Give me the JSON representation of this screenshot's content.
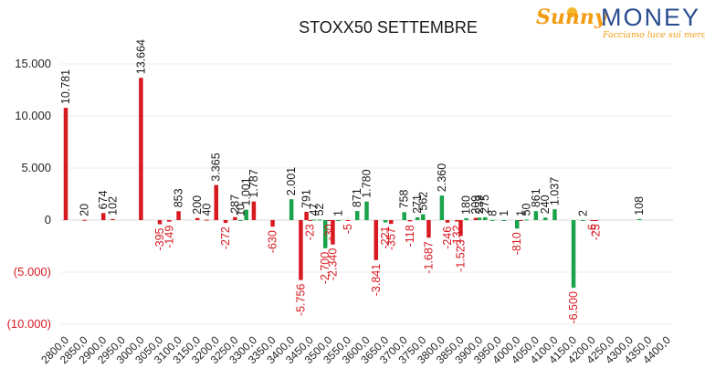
{
  "logo": {
    "brand_script": "Sunny",
    "brand_caps": "MONEY",
    "tagline": "Facciamo luce sui mercati"
  },
  "colors": {
    "call": "#1aa34a",
    "put": "#d71920",
    "negative_tick": "#d71920"
  },
  "chart_data": {
    "type": "bar",
    "title": "STOXX50 SETTEMBRE",
    "xlabel": "",
    "ylabel": "",
    "ylim": [
      -10000,
      15000
    ],
    "grid": true,
    "legend": "none",
    "y_ticks": [
      {
        "value": 15000,
        "label": "15.000"
      },
      {
        "value": 10000,
        "label": "10.000"
      },
      {
        "value": 5000,
        "label": "5.000"
      },
      {
        "value": 0,
        "label": "0"
      },
      {
        "value": -5000,
        "label": "(5.000)"
      },
      {
        "value": -10000,
        "label": "(10.000)"
      }
    ],
    "categories": [
      "2800,0",
      "2850,0",
      "2900,0",
      "2950,0",
      "3000,0",
      "3050,0",
      "3100,0",
      "3150,0",
      "3200,0",
      "3250,0",
      "3300,0",
      "3350,0",
      "3400,0",
      "3450,0",
      "3500,0",
      "3550,0",
      "3600,0",
      "3650,0",
      "3700,0",
      "3750,0",
      "3800,0",
      "3850,0",
      "3900,0",
      "3950,0",
      "4000,0",
      "4050,0",
      "4100,0",
      "4150,0",
      "4200,0",
      "4250,0",
      "4300,0",
      "4350,0",
      "4400,0"
    ],
    "bars": [
      {
        "x": 2800,
        "value": 10781,
        "label": "10.781",
        "color": "put"
      },
      {
        "x": 2850,
        "value": 20,
        "label": "20",
        "color": "put"
      },
      {
        "x": 2900,
        "value": 674,
        "label": "674",
        "color": "put"
      },
      {
        "x": 2925,
        "value": 102,
        "label": "102",
        "color": "put"
      },
      {
        "x": 3000,
        "value": 13664,
        "label": "13.664",
        "color": "put"
      },
      {
        "x": 3050,
        "value": -395,
        "label": "-395",
        "color": "put"
      },
      {
        "x": 3075,
        "value": -149,
        "label": "-149",
        "color": "put"
      },
      {
        "x": 3100,
        "value": 853,
        "label": "853",
        "color": "put"
      },
      {
        "x": 3150,
        "value": 200,
        "label": "200",
        "color": "put"
      },
      {
        "x": 3175,
        "value": 40,
        "label": "40",
        "color": "put"
      },
      {
        "x": 3200,
        "value": 3365,
        "label": "3.365",
        "color": "put"
      },
      {
        "x": 3225,
        "value": -272,
        "label": "-272",
        "color": "put"
      },
      {
        "x": 3250,
        "value": 287,
        "label": "287",
        "color": "put"
      },
      {
        "x": 3265,
        "value": 10,
        "label": "10",
        "color": "call"
      },
      {
        "x": 3280,
        "value": 1001,
        "label": "1.001",
        "color": "call"
      },
      {
        "x": 3300,
        "value": 1787,
        "label": "1.787",
        "color": "put"
      },
      {
        "x": 3350,
        "value": -630,
        "label": "-630",
        "color": "put"
      },
      {
        "x": 3400,
        "value": 2001,
        "label": "2.001",
        "color": "call"
      },
      {
        "x": 3425,
        "value": -5756,
        "label": "-5.756",
        "color": "put"
      },
      {
        "x": 3440,
        "value": 791,
        "label": "791",
        "color": "put"
      },
      {
        "x": 3450,
        "value": -23,
        "label": "-23",
        "color": "put"
      },
      {
        "x": 3460,
        "value": 47,
        "label": "47",
        "color": "call"
      },
      {
        "x": 3475,
        "value": 52,
        "label": "52",
        "color": "call"
      },
      {
        "x": 3490,
        "value": -2700,
        "label": "-2.700",
        "color": "call"
      },
      {
        "x": 3500,
        "value": -30,
        "label": "-30",
        "color": "put"
      },
      {
        "x": 3510,
        "value": -2340,
        "label": "-2.340",
        "color": "put"
      },
      {
        "x": 3525,
        "value": 1,
        "label": "1",
        "color": "call"
      },
      {
        "x": 3550,
        "value": -5,
        "label": "-5",
        "color": "put"
      },
      {
        "x": 3575,
        "value": 871,
        "label": "871",
        "color": "call"
      },
      {
        "x": 3600,
        "value": 1780,
        "label": "1.780",
        "color": "call"
      },
      {
        "x": 3625,
        "value": -3841,
        "label": "-3.841",
        "color": "put"
      },
      {
        "x": 3650,
        "value": -221,
        "label": "-221",
        "color": "call"
      },
      {
        "x": 3665,
        "value": -357,
        "label": "-357",
        "color": "put"
      },
      {
        "x": 3700,
        "value": 758,
        "label": "758",
        "color": "call"
      },
      {
        "x": 3715,
        "value": -118,
        "label": "-118",
        "color": "put"
      },
      {
        "x": 3735,
        "value": 271,
        "label": "271",
        "color": "call"
      },
      {
        "x": 3750,
        "value": 562,
        "label": "562",
        "color": "call"
      },
      {
        "x": 3765,
        "value": -1687,
        "label": "-1.687",
        "color": "put"
      },
      {
        "x": 3800,
        "value": 2360,
        "label": "2.360",
        "color": "call"
      },
      {
        "x": 3815,
        "value": -246,
        "label": "-246",
        "color": "put"
      },
      {
        "x": 3840,
        "value": -132,
        "label": "-132",
        "color": "put"
      },
      {
        "x": 3850,
        "value": -1523,
        "label": "-1.523",
        "color": "put"
      },
      {
        "x": 3865,
        "value": 180,
        "label": "180",
        "color": "call"
      },
      {
        "x": 3890,
        "value": 209,
        "label": "209",
        "color": "put"
      },
      {
        "x": 3900,
        "value": 239,
        "label": "239",
        "color": "call"
      },
      {
        "x": 3915,
        "value": 275,
        "label": "275",
        "color": "call"
      },
      {
        "x": 3935,
        "value": 8,
        "label": "8",
        "color": "call"
      },
      {
        "x": 3965,
        "value": 1,
        "label": "1",
        "color": "call"
      },
      {
        "x": 4000,
        "value": -810,
        "label": "-810",
        "color": "call"
      },
      {
        "x": 4010,
        "value": 1,
        "label": "1",
        "color": "put"
      },
      {
        "x": 4025,
        "value": 50,
        "label": "50",
        "color": "call"
      },
      {
        "x": 4050,
        "value": 861,
        "label": "861",
        "color": "call"
      },
      {
        "x": 4075,
        "value": 240,
        "label": "240",
        "color": "call"
      },
      {
        "x": 4100,
        "value": 1037,
        "label": "1.037",
        "color": "call"
      },
      {
        "x": 4150,
        "value": -6500,
        "label": "-6.500",
        "color": "call"
      },
      {
        "x": 4175,
        "value": 2,
        "label": "2",
        "color": "call"
      },
      {
        "x": 4200,
        "value": -6,
        "label": "-6",
        "color": "put"
      },
      {
        "x": 4210,
        "value": -25,
        "label": "-25",
        "color": "put"
      },
      {
        "x": 4325,
        "value": 108,
        "label": "108",
        "color": "call"
      }
    ]
  }
}
